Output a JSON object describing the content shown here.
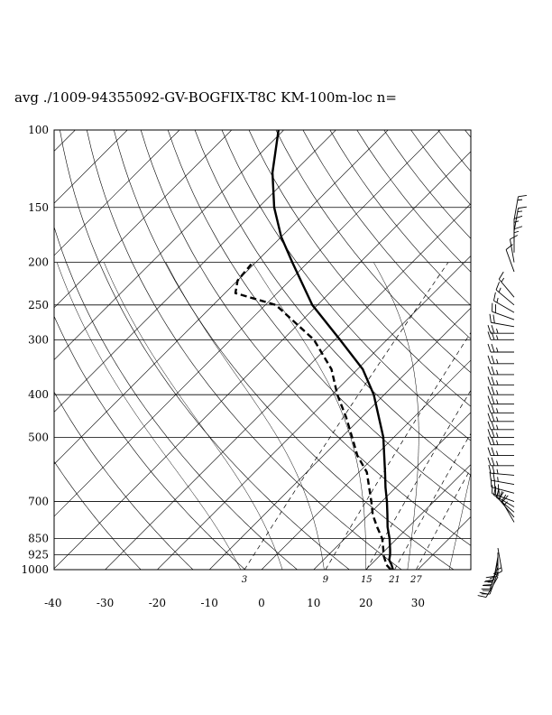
{
  "chart_data": {
    "type": "line",
    "title": "avg ./1009-94355092-GV-BOGFIX-T8C KM-100m-loc n=",
    "pressure_levels": [
      100,
      150,
      200,
      250,
      300,
      400,
      500,
      700,
      850,
      925,
      1000
    ],
    "pressure_labels": [
      "100",
      "150",
      "200",
      "250",
      "300",
      "400",
      "500",
      "700",
      "850",
      "925",
      "1000"
    ],
    "x_ticks": [
      -40,
      -30,
      -20,
      -10,
      0,
      10,
      20,
      30
    ],
    "x_tick_labels": [
      "-40",
      "-30",
      "-20",
      "-10",
      "0",
      "10",
      "20",
      "30"
    ],
    "xlim": [
      -40,
      40
    ],
    "ylim": [
      1000,
      100
    ],
    "y_scale": "log",
    "mixing_ratio_labels": [
      "3",
      "9",
      "15",
      "21",
      "27"
    ],
    "mixing_ratio_values": [
      3,
      9,
      15,
      21,
      27
    ],
    "series": [
      {
        "style": "solid",
        "points": [
          [
            1000,
            25.2
          ],
          [
            975,
            24.0
          ],
          [
            950,
            22.6
          ],
          [
            925,
            21.8
          ],
          [
            900,
            20.8
          ],
          [
            850,
            18.6
          ],
          [
            800,
            16.0
          ],
          [
            750,
            13.6
          ],
          [
            700,
            11.0
          ],
          [
            650,
            8.0
          ],
          [
            600,
            5.0
          ],
          [
            500,
            -2.0
          ],
          [
            400,
            -12.0
          ],
          [
            350,
            -19.0
          ],
          [
            300,
            -29.0
          ],
          [
            250,
            -41.0
          ],
          [
            200,
            -53.0
          ],
          [
            175,
            -60.0
          ],
          [
            150,
            -67.0
          ],
          [
            125,
            -74.0
          ],
          [
            100,
            -81.0
          ]
        ]
      },
      {
        "style": "dashed",
        "points": [
          [
            1000,
            24.8
          ],
          [
            975,
            23.0
          ],
          [
            950,
            21.8
          ],
          [
            925,
            20.5
          ],
          [
            900,
            19.5
          ],
          [
            850,
            17.2
          ],
          [
            800,
            14.0
          ],
          [
            750,
            10.8
          ],
          [
            700,
            8.0
          ],
          [
            600,
            1.5
          ],
          [
            550,
            -3.5
          ],
          [
            500,
            -8.0
          ],
          [
            450,
            -13.0
          ],
          [
            400,
            -19.0
          ],
          [
            350,
            -25.0
          ],
          [
            300,
            -34.0
          ],
          [
            250,
            -48.0
          ],
          [
            235,
            -58.0
          ],
          [
            220,
            -60.0
          ],
          [
            202,
            -60.5
          ]
        ]
      }
    ],
    "wind_barbs": {
      "surface_group": [
        {
          "p": 1000,
          "dir": 210,
          "spd": 20
        },
        {
          "p": 975,
          "dir": 200,
          "spd": 20
        },
        {
          "p": 950,
          "dir": 200,
          "spd": 25
        },
        {
          "p": 925,
          "dir": 195,
          "spd": 20
        },
        {
          "p": 900,
          "dir": 190,
          "spd": 20
        },
        {
          "p": 880,
          "dir": 180,
          "spd": 15
        },
        {
          "p": 860,
          "dir": 170,
          "spd": 15
        }
      ],
      "upper_group": [
        {
          "p": 780,
          "dir": 330,
          "spd": 15
        },
        {
          "p": 760,
          "dir": 320,
          "spd": 20
        },
        {
          "p": 740,
          "dir": 310,
          "spd": 20
        },
        {
          "p": 720,
          "dir": 300,
          "spd": 20
        },
        {
          "p": 700,
          "dir": 290,
          "spd": 25
        },
        {
          "p": 670,
          "dir": 285,
          "spd": 25
        },
        {
          "p": 640,
          "dir": 280,
          "spd": 25
        },
        {
          "p": 610,
          "dir": 275,
          "spd": 25
        },
        {
          "p": 580,
          "dir": 270,
          "spd": 25
        },
        {
          "p": 550,
          "dir": 270,
          "spd": 25
        },
        {
          "p": 520,
          "dir": 270,
          "spd": 25
        },
        {
          "p": 500,
          "dir": 270,
          "spd": 25
        },
        {
          "p": 480,
          "dir": 270,
          "spd": 25
        },
        {
          "p": 460,
          "dir": 270,
          "spd": 25
        },
        {
          "p": 440,
          "dir": 270,
          "spd": 25
        },
        {
          "p": 420,
          "dir": 270,
          "spd": 25
        },
        {
          "p": 400,
          "dir": 270,
          "spd": 25
        },
        {
          "p": 380,
          "dir": 270,
          "spd": 25
        },
        {
          "p": 360,
          "dir": 270,
          "spd": 25
        },
        {
          "p": 340,
          "dir": 270,
          "spd": 25
        },
        {
          "p": 320,
          "dir": 270,
          "spd": 25
        },
        {
          "p": 300,
          "dir": 270,
          "spd": 25
        },
        {
          "p": 290,
          "dir": 270,
          "spd": 25
        },
        {
          "p": 280,
          "dir": 280,
          "spd": 20
        },
        {
          "p": 270,
          "dir": 290,
          "spd": 20
        },
        {
          "p": 260,
          "dir": 300,
          "spd": 15
        },
        {
          "p": 250,
          "dir": 310,
          "spd": 15
        },
        {
          "p": 240,
          "dir": 320,
          "spd": 15
        },
        {
          "p": 210,
          "dir": 340,
          "spd": 10
        },
        {
          "p": 200,
          "dir": 350,
          "spd": 10
        },
        {
          "p": 190,
          "dir": 360,
          "spd": 15
        },
        {
          "p": 180,
          "dir": 360,
          "spd": 15
        },
        {
          "p": 170,
          "dir": 10,
          "spd": 15
        },
        {
          "p": 160,
          "dir": 10,
          "spd": 15
        }
      ]
    },
    "grid": true
  }
}
